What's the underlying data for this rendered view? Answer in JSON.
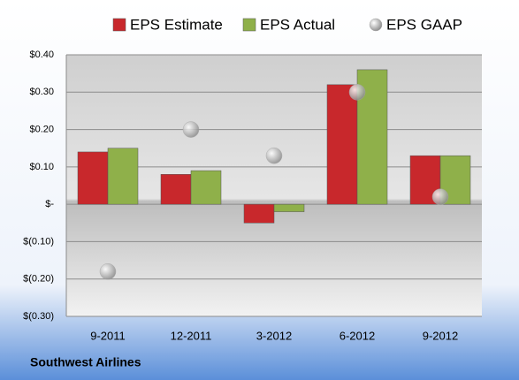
{
  "chart_data": {
    "type": "bar",
    "categories": [
      "9-2011",
      "12-2011",
      "3-2012",
      "6-2012",
      "9-2012"
    ],
    "series": [
      {
        "name": "EPS Estimate",
        "color": "#c8282c",
        "values": [
          0.14,
          0.08,
          -0.05,
          0.32,
          0.13
        ]
      },
      {
        "name": "EPS Actual",
        "color": "#8fb04a",
        "values": [
          0.15,
          0.09,
          -0.02,
          0.36,
          0.13
        ]
      },
      {
        "name": "EPS GAAP",
        "color": "#a6a6a6",
        "type": "scatter",
        "values": [
          -0.18,
          0.2,
          0.13,
          0.3,
          0.02
        ]
      }
    ],
    "ylim": [
      -0.3,
      0.4
    ],
    "yticks": [
      {
        "value": 0.4,
        "label": "$0.40"
      },
      {
        "value": 0.3,
        "label": "$0.30"
      },
      {
        "value": 0.2,
        "label": "$0.20"
      },
      {
        "value": 0.1,
        "label": "$0.10"
      },
      {
        "value": 0,
        "label": "$-"
      },
      {
        "value": -0.1,
        "label": "$(0.10)"
      },
      {
        "value": -0.2,
        "label": "$(0.20)"
      },
      {
        "value": -0.3,
        "label": "$(0.30)"
      }
    ],
    "grid": true,
    "legend": "top",
    "footer": "Southwest Airlines"
  }
}
